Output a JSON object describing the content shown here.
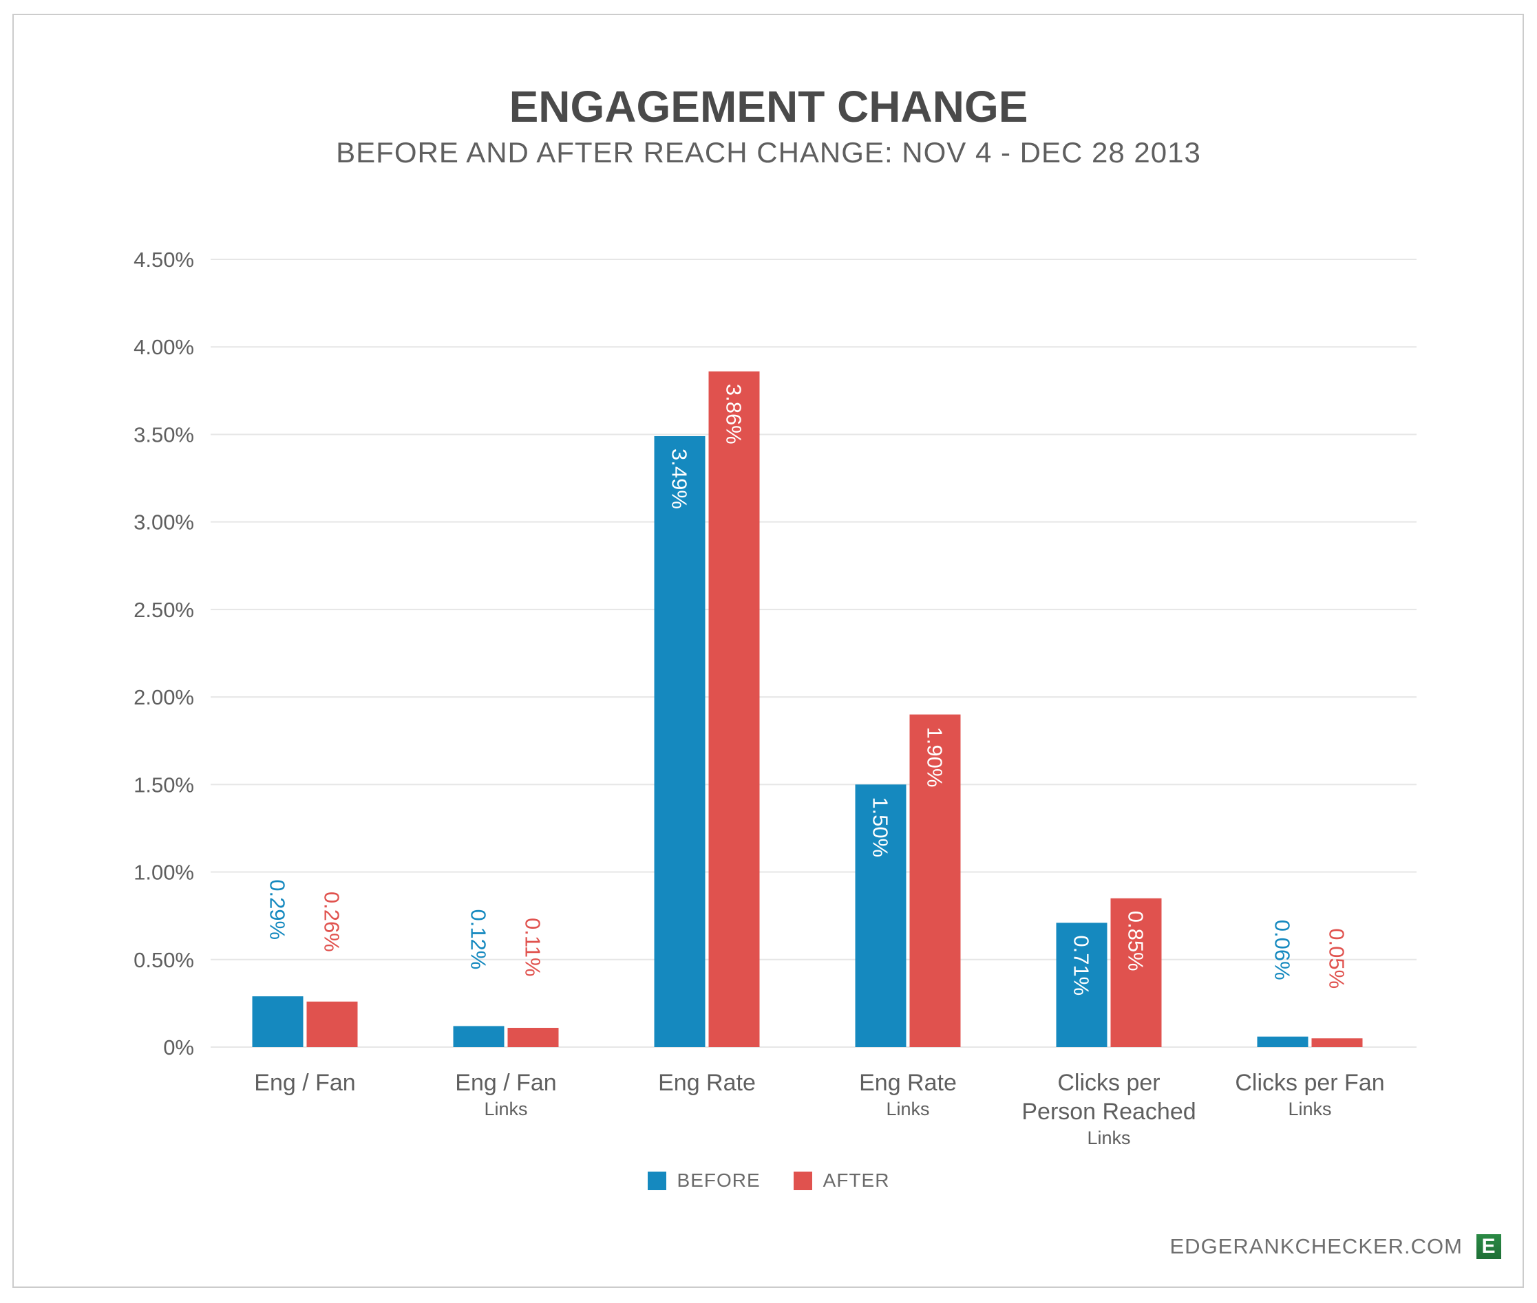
{
  "chart_data": {
    "type": "bar",
    "title": "ENGAGEMENT CHANGE",
    "subtitle": "BEFORE AND AFTER REACH CHANGE: NOV 4 - DEC 28 2013",
    "xlabel": "",
    "ylabel": "",
    "ylim": [
      0,
      4.5
    ],
    "yticks": [
      0,
      0.5,
      1.0,
      1.5,
      2.0,
      2.5,
      3.0,
      3.5,
      4.0,
      4.5
    ],
    "ytick_labels": [
      "0%",
      "0.50%",
      "1.00%",
      "1.50%",
      "2.00%",
      "2.50%",
      "3.00%",
      "3.50%",
      "4.00%",
      "4.50%"
    ],
    "grid": true,
    "categories": [
      {
        "lines": [
          "Eng / Fan"
        ],
        "sub": ""
      },
      {
        "lines": [
          "Eng / Fan"
        ],
        "sub": "Links"
      },
      {
        "lines": [
          "Eng Rate"
        ],
        "sub": ""
      },
      {
        "lines": [
          "Eng Rate"
        ],
        "sub": "Links"
      },
      {
        "lines": [
          "Clicks per",
          "Person Reached"
        ],
        "sub": "Links"
      },
      {
        "lines": [
          "Clicks per Fan"
        ],
        "sub": "Links"
      }
    ],
    "series": [
      {
        "name": "BEFORE",
        "color": "#1589bf",
        "values": [
          0.29,
          0.12,
          3.49,
          1.5,
          0.71,
          0.06
        ],
        "labels": [
          "0.29%",
          "0.12%",
          "3.49%",
          "1.50%",
          "0.71%",
          "0.06%"
        ]
      },
      {
        "name": "AFTER",
        "color": "#e0524e",
        "values": [
          0.26,
          0.11,
          3.86,
          1.9,
          0.85,
          0.05
        ],
        "labels": [
          "0.26%",
          "0.11%",
          "3.86%",
          "1.90%",
          "0.85%",
          "0.05%"
        ]
      }
    ],
    "legend": {
      "position": "bottom-center",
      "items": [
        "BEFORE",
        "AFTER"
      ]
    }
  },
  "footer": {
    "brand_text": "EDGERANKCHECKER.COM",
    "logo_letter": "E",
    "logo_color": "#2a8a45"
  }
}
